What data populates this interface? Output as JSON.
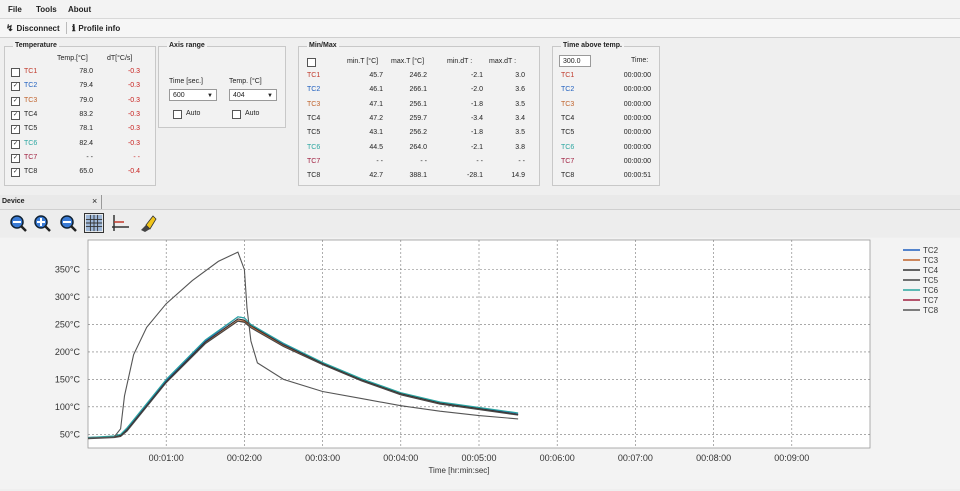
{
  "menu": {
    "file": "File",
    "tools": "Tools",
    "about": "About"
  },
  "toolbar": {
    "disconnect": "Disconnect",
    "profile_info": "Profile info"
  },
  "temperature": {
    "title": "Temperature",
    "col_temp": "Temp.[°C]",
    "col_dt": "dT[°C/s]",
    "rows": [
      {
        "name": "TC1",
        "temp": "78.0",
        "dt": "-0.3",
        "checked": false,
        "color": "#c0392b"
      },
      {
        "name": "TC2",
        "temp": "79.4",
        "dt": "-0.3",
        "checked": true,
        "color": "#1f5fbf"
      },
      {
        "name": "TC3",
        "temp": "79.0",
        "dt": "-0.3",
        "checked": true,
        "color": "#c0622b"
      },
      {
        "name": "TC4",
        "temp": "83.2",
        "dt": "-0.3",
        "checked": true,
        "color": "#222222"
      },
      {
        "name": "TC5",
        "temp": "78.1",
        "dt": "-0.3",
        "checked": true,
        "color": "#222222"
      },
      {
        "name": "TC6",
        "temp": "82.4",
        "dt": "-0.3",
        "checked": true,
        "color": "#2aa6a0"
      },
      {
        "name": "TC7",
        "temp": "- -",
        "dt": "- -",
        "checked": true,
        "color": "#a02040"
      },
      {
        "name": "TC8",
        "temp": "65.0",
        "dt": "-0.4",
        "checked": true,
        "color": "#222222"
      }
    ]
  },
  "axis_range": {
    "title": "Axis range",
    "time_label": "Time [sec.]",
    "time_value": "600",
    "temp_label": "Temp. [°C]",
    "temp_value": "404",
    "auto1": "Auto",
    "auto2": "Auto"
  },
  "minmax": {
    "title": "Min/Max",
    "headers": [
      "min.T [°C]",
      "max.T [°C]",
      "min.dT :",
      "max.dT :"
    ],
    "rows": [
      {
        "name": "TC1",
        "v": [
          "45.7",
          "246.2",
          "-2.1",
          "3.0"
        ],
        "color": "#c0392b"
      },
      {
        "name": "TC2",
        "v": [
          "46.1",
          "266.1",
          "-2.0",
          "3.6"
        ],
        "color": "#1f5fbf"
      },
      {
        "name": "TC3",
        "v": [
          "47.1",
          "256.1",
          "-1.8",
          "3.5"
        ],
        "color": "#c0622b"
      },
      {
        "name": "TC4",
        "v": [
          "47.2",
          "259.7",
          "-3.4",
          "3.4"
        ],
        "color": "#222222"
      },
      {
        "name": "TC5",
        "v": [
          "43.1",
          "256.2",
          "-1.8",
          "3.5"
        ],
        "color": "#222222"
      },
      {
        "name": "TC6",
        "v": [
          "44.5",
          "264.0",
          "-2.1",
          "3.8"
        ],
        "color": "#2aa6a0"
      },
      {
        "name": "TC7",
        "v": [
          "- -",
          "- -",
          "- -",
          "- -"
        ],
        "color": "#a02040"
      },
      {
        "name": "TC8",
        "v": [
          "42.7",
          "388.1",
          "-28.1",
          "14.9"
        ],
        "color": "#222222"
      }
    ]
  },
  "time_above": {
    "title": "Time above temp.",
    "temp_value": "300.0",
    "time_header": "Time:",
    "rows": [
      {
        "name": "TC1",
        "time": "00:00:00",
        "color": "#c0392b"
      },
      {
        "name": "TC2",
        "time": "00:00:00",
        "color": "#1f5fbf"
      },
      {
        "name": "TC3",
        "time": "00:00:00",
        "color": "#c0622b"
      },
      {
        "name": "TC4",
        "time": "00:00:00",
        "color": "#222222"
      },
      {
        "name": "TC5",
        "time": "00:00:00",
        "color": "#222222"
      },
      {
        "name": "TC6",
        "time": "00:00:00",
        "color": "#2aa6a0"
      },
      {
        "name": "TC7",
        "time": "00:00:00",
        "color": "#a02040"
      },
      {
        "name": "TC8",
        "time": "00:00:51",
        "color": "#222222"
      }
    ]
  },
  "device": {
    "tab_label": "Device",
    "close": "×"
  },
  "chart_data": {
    "type": "line",
    "xlabel": "Time [hr:min:sec]",
    "ylabel": "",
    "x_ticks_sec": [
      60,
      120,
      180,
      240,
      300,
      360,
      420,
      480,
      540
    ],
    "x_tick_labels": [
      "00:01:00",
      "00:02:00",
      "00:03:00",
      "00:04:00",
      "00:05:00",
      "00:06:00",
      "00:07:00",
      "00:08:00",
      "00:09:00"
    ],
    "xlim": [
      0,
      600
    ],
    "y_ticks": [
      50,
      100,
      150,
      200,
      250,
      300,
      350
    ],
    "y_tick_labels": [
      "50°C",
      "100°C",
      "150°C",
      "200°C",
      "250°C",
      "300°C",
      "350°C"
    ],
    "ylim": [
      25,
      404
    ],
    "grid": true,
    "legend_position": "right",
    "series": [
      {
        "name": "TC2",
        "color": "#1f5fbf",
        "x": [
          0,
          20,
          25,
          30,
          60,
          90,
          115,
          120,
          125,
          150,
          180,
          210,
          240,
          270,
          300,
          330
        ],
        "y": [
          44,
          46,
          48,
          60,
          148,
          220,
          264,
          262,
          250,
          215,
          180,
          150,
          125,
          108,
          98,
          88
        ]
      },
      {
        "name": "TC3",
        "color": "#c0622b",
        "x": [
          0,
          20,
          25,
          30,
          60,
          90,
          115,
          120,
          125,
          150,
          180,
          210,
          240,
          270,
          300,
          330
        ],
        "y": [
          43,
          45,
          47,
          58,
          145,
          216,
          257,
          256,
          246,
          212,
          178,
          148,
          124,
          106,
          96,
          86
        ]
      },
      {
        "name": "TC4",
        "color": "#333333",
        "x": [
          0,
          20,
          25,
          30,
          60,
          90,
          115,
          120,
          125,
          150,
          180,
          210,
          240,
          270,
          300,
          330
        ],
        "y": [
          44,
          46,
          48,
          58,
          146,
          218,
          260,
          258,
          248,
          213,
          179,
          149,
          124,
          107,
          97,
          86
        ]
      },
      {
        "name": "TC5",
        "color": "#444444",
        "x": [
          0,
          20,
          25,
          30,
          60,
          90,
          115,
          120,
          125,
          150,
          180,
          210,
          240,
          270,
          300,
          330
        ],
        "y": [
          42,
          44,
          46,
          56,
          144,
          215,
          256,
          254,
          244,
          210,
          177,
          147,
          122,
          105,
          95,
          85
        ]
      },
      {
        "name": "TC6",
        "color": "#2aa6a0",
        "x": [
          0,
          20,
          25,
          30,
          60,
          90,
          115,
          120,
          125,
          150,
          180,
          210,
          240,
          270,
          300,
          330
        ],
        "y": [
          44,
          47,
          50,
          62,
          150,
          222,
          264,
          262,
          250,
          216,
          181,
          151,
          126,
          109,
          99,
          89
        ]
      },
      {
        "name": "TC7",
        "color": "#a02040",
        "x": [],
        "y": []
      },
      {
        "name": "TC8",
        "color": "#555555",
        "x": [
          0,
          20,
          25,
          28,
          35,
          45,
          60,
          80,
          100,
          115,
          120,
          122,
          125,
          130,
          150,
          180,
          210,
          240,
          270,
          300,
          330
        ],
        "y": [
          43,
          45,
          60,
          120,
          195,
          245,
          288,
          330,
          365,
          382,
          350,
          280,
          220,
          180,
          150,
          128,
          115,
          102,
          92,
          84,
          78
        ]
      }
    ]
  }
}
